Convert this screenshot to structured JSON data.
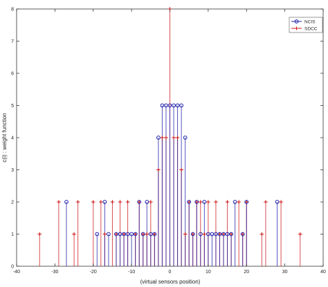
{
  "chart_data": {
    "type": "stem",
    "title": "",
    "xlabel": "(virtual sensors position)",
    "ylabel": "c(i) : weight function",
    "xlim": [
      -40,
      40
    ],
    "ylim": [
      0,
      8
    ],
    "xticks": [
      -40,
      -30,
      -20,
      -10,
      0,
      10,
      20,
      30,
      40
    ],
    "yticks": [
      0,
      1,
      2,
      3,
      4,
      5,
      6,
      7,
      8
    ],
    "grid": false,
    "legend_position": "top-right",
    "series": [
      {
        "name": "NCIS",
        "color": "#1a1aaa",
        "marker": "circle",
        "points": [
          [
            -27,
            2
          ],
          [
            -19,
            1
          ],
          [
            -17,
            2
          ],
          [
            -16,
            1
          ],
          [
            -14,
            1
          ],
          [
            -13,
            1
          ],
          [
            -12,
            1
          ],
          [
            -11,
            1
          ],
          [
            -10,
            1
          ],
          [
            -9,
            1
          ],
          [
            -8,
            2
          ],
          [
            -7,
            1
          ],
          [
            -6,
            2
          ],
          [
            -5,
            1
          ],
          [
            -4,
            1
          ],
          [
            -3,
            4
          ],
          [
            -2,
            5
          ],
          [
            -1,
            5
          ],
          [
            0,
            5
          ],
          [
            1,
            5
          ],
          [
            2,
            5
          ],
          [
            3,
            5
          ],
          [
            4,
            4
          ],
          [
            5,
            2
          ],
          [
            6,
            1
          ],
          [
            7,
            2
          ],
          [
            8,
            1
          ],
          [
            9,
            2
          ],
          [
            10,
            1
          ],
          [
            11,
            1
          ],
          [
            12,
            1
          ],
          [
            13,
            1
          ],
          [
            14,
            1
          ],
          [
            15,
            1
          ],
          [
            16,
            1
          ],
          [
            17,
            2
          ],
          [
            19,
            1
          ],
          [
            20,
            2
          ],
          [
            28,
            2
          ]
        ]
      },
      {
        "name": "SDCC",
        "color": "#cc1111",
        "marker": "plus",
        "points": [
          [
            -34,
            1
          ],
          [
            -29,
            2
          ],
          [
            -25,
            1
          ],
          [
            -24,
            2
          ],
          [
            -20,
            2
          ],
          [
            -18,
            2
          ],
          [
            -17,
            1
          ],
          [
            -15,
            2
          ],
          [
            -14,
            1
          ],
          [
            -13,
            2
          ],
          [
            -12,
            1
          ],
          [
            -11,
            2
          ],
          [
            -9,
            1
          ],
          [
            -8,
            2
          ],
          [
            -7,
            1
          ],
          [
            -6,
            1
          ],
          [
            -5,
            2
          ],
          [
            -4,
            1
          ],
          [
            -3,
            3
          ],
          [
            -2,
            4
          ],
          [
            -1,
            4
          ],
          [
            0,
            8
          ],
          [
            1,
            4
          ],
          [
            2,
            4
          ],
          [
            3,
            3
          ],
          [
            4,
            1
          ],
          [
            5,
            2
          ],
          [
            6,
            1
          ],
          [
            7,
            2
          ],
          [
            8,
            2
          ],
          [
            9,
            1
          ],
          [
            10,
            2
          ],
          [
            12,
            2
          ],
          [
            13,
            1
          ],
          [
            14,
            1
          ],
          [
            15,
            2
          ],
          [
            16,
            1
          ],
          [
            18,
            2
          ],
          [
            19,
            1
          ],
          [
            20,
            2
          ],
          [
            24,
            1
          ],
          [
            25,
            2
          ],
          [
            29,
            2
          ],
          [
            34,
            1
          ]
        ]
      }
    ]
  }
}
